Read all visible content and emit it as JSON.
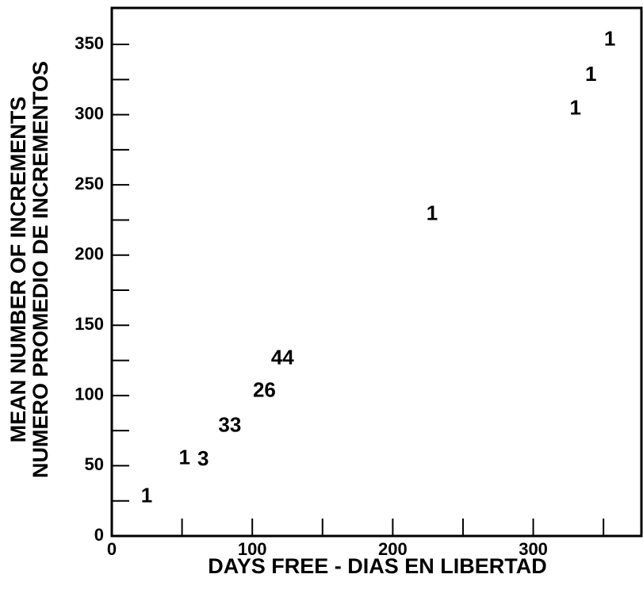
{
  "chart_data": {
    "type": "scatter",
    "xlabel": "DAYS FREE - DIAS EN LIBERTAD",
    "ylabel": [
      "MEAN NUMBER OF INCREMENTS",
      "NUMERO PROMEDIO DE INCREMENTOS"
    ],
    "x": [
      24.8,
      51.8,
      65,
      84,
      108.6,
      121.5,
      228,
      330,
      341,
      354.5
    ],
    "values": [
      28,
      55,
      54,
      78,
      103,
      126,
      229,
      304,
      328,
      353
    ],
    "labels": [
      "1",
      "1",
      "3",
      "33",
      "26",
      "44",
      "1",
      "1",
      "1",
      "1"
    ],
    "xlim": [
      0,
      377
    ],
    "xticks": [
      0,
      100,
      200,
      300
    ],
    "xminorticks": [
      50,
      150,
      250,
      350
    ],
    "ylim": [
      0,
      376
    ],
    "yticks": [
      0,
      50,
      100,
      150,
      200,
      250,
      300,
      350
    ],
    "yminorticks": [
      25,
      75,
      125,
      175,
      225,
      275,
      325
    ],
    "color": "#000000"
  }
}
